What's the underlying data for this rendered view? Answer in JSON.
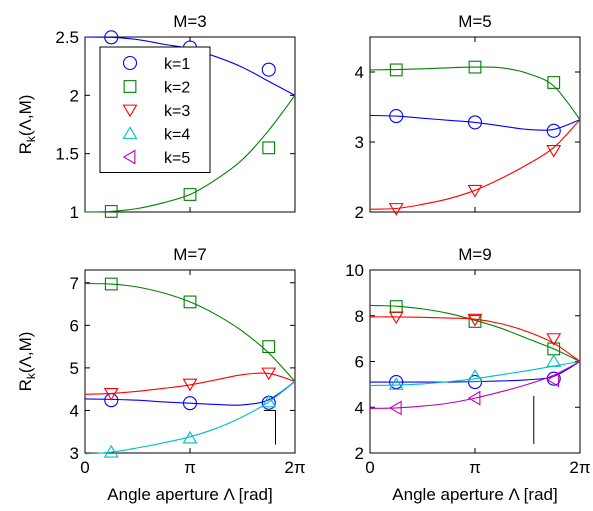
{
  "chart_data": [
    {
      "type": "line",
      "title": "M=3",
      "ylabel": "R",
      "ylabel_sub": "k",
      "ylabel_args": "(Λ,M)",
      "xlabel": "",
      "xlim": [
        0,
        6.2832
      ],
      "ylim": [
        1,
        2.5
      ],
      "xticks": [
        0,
        3.1416,
        6.2832
      ],
      "xticklabels": [
        "",
        "",
        ""
      ],
      "yticks": [
        1,
        1.5,
        2,
        2.5
      ],
      "yticklabels": [
        "1",
        "1.5",
        "2",
        "2.5"
      ],
      "grid": false,
      "legend": {
        "position": "inside-left",
        "entries": [
          "k=1",
          "k=2",
          "k=3",
          "k=4",
          "k=5"
        ]
      },
      "series": [
        {
          "k": 1,
          "curve_x": [
            0,
            0.7854,
            1.5708,
            2.3562,
            3.1416,
            3.927,
            4.7124,
            5.4978,
            6.2832
          ],
          "curve_y": [
            2.5,
            2.497,
            2.478,
            2.438,
            2.4,
            2.33,
            2.24,
            2.12,
            2.0
          ],
          "marker_x": [
            0.7854,
            3.1416,
            5.4978
          ],
          "marker_y": [
            2.497,
            2.41,
            2.22
          ]
        },
        {
          "k": 2,
          "curve_x": [
            0,
            0.7854,
            1.5708,
            2.3562,
            3.1416,
            3.927,
            4.7124,
            5.4978,
            6.2832
          ],
          "curve_y": [
            1.0,
            1.005,
            1.03,
            1.08,
            1.15,
            1.28,
            1.45,
            1.7,
            2.0
          ],
          "marker_x": [
            0.7854,
            3.1416,
            5.4978
          ],
          "marker_y": [
            1.005,
            1.15,
            1.55
          ]
        }
      ]
    },
    {
      "type": "line",
      "title": "M=5",
      "ylabel": "",
      "xlabel": "",
      "xlim": [
        0,
        6.2832
      ],
      "ylim": [
        2,
        4.5
      ],
      "xticks": [
        0,
        3.1416,
        6.2832
      ],
      "xticklabels": [
        "",
        "",
        ""
      ],
      "yticks": [
        2,
        3,
        4
      ],
      "yticklabels": [
        "2",
        "3",
        "4"
      ],
      "grid": false,
      "series": [
        {
          "k": 1,
          "curve_x": [
            0,
            0.7854,
            1.5708,
            2.3562,
            3.1416,
            3.927,
            4.7124,
            5.4978,
            6.2832
          ],
          "curve_y": [
            3.38,
            3.37,
            3.34,
            3.31,
            3.28,
            3.23,
            3.18,
            3.18,
            3.32
          ],
          "marker_x": [
            0.7854,
            3.1416,
            5.4978
          ],
          "marker_y": [
            3.37,
            3.28,
            3.16
          ]
        },
        {
          "k": 2,
          "curve_x": [
            0,
            0.7854,
            1.5708,
            2.3562,
            3.1416,
            3.927,
            4.7124,
            5.4978,
            6.2832
          ],
          "curve_y": [
            4.03,
            4.035,
            4.045,
            4.06,
            4.07,
            4.06,
            3.98,
            3.8,
            3.32
          ],
          "marker_x": [
            0.7854,
            3.1416,
            5.4978
          ],
          "marker_y": [
            4.03,
            4.07,
            3.85
          ]
        },
        {
          "k": 3,
          "curve_x": [
            0,
            0.7854,
            1.5708,
            2.3562,
            3.1416,
            3.927,
            4.7124,
            5.4978,
            6.2832
          ],
          "curve_y": [
            2.04,
            2.05,
            2.11,
            2.19,
            2.31,
            2.48,
            2.68,
            2.92,
            3.32
          ],
          "marker_x": [
            0.7854,
            3.1416,
            5.4978
          ],
          "marker_y": [
            2.05,
            2.31,
            2.88
          ]
        }
      ]
    },
    {
      "type": "line",
      "title": "M=7",
      "ylabel": "R",
      "ylabel_sub": "k",
      "ylabel_args": "(Λ,M)",
      "xlabel": "Angle aperture Λ [rad]",
      "xlim": [
        0,
        6.2832
      ],
      "ylim": [
        3,
        7.3
      ],
      "xticks": [
        0,
        3.1416,
        6.2832
      ],
      "xticklabels": [
        "0",
        "π",
        "2π"
      ],
      "yticks": [
        3,
        4,
        5,
        6,
        7
      ],
      "yticklabels": [
        "3",
        "4",
        "5",
        "6",
        "7"
      ],
      "grid": false,
      "series": [
        {
          "k": 1,
          "curve_x": [
            0,
            0.7854,
            1.5708,
            2.3562,
            3.1416,
            3.927,
            4.7124,
            5.4978,
            6.2832
          ],
          "curve_y": [
            4.27,
            4.26,
            4.24,
            4.2,
            4.17,
            4.14,
            4.13,
            4.25,
            4.68
          ],
          "marker_x": [
            0.7854,
            3.1416,
            5.4978
          ],
          "marker_y": [
            4.24,
            4.17,
            4.18
          ]
        },
        {
          "k": 2,
          "curve_x": [
            0,
            0.7854,
            1.5708,
            2.3562,
            3.1416,
            3.927,
            4.7124,
            5.4978,
            6.2832
          ],
          "curve_y": [
            6.98,
            6.97,
            6.9,
            6.76,
            6.55,
            6.25,
            5.86,
            5.35,
            4.68
          ],
          "marker_x": [
            0.7854,
            3.1416,
            5.4978
          ],
          "marker_y": [
            6.97,
            6.55,
            5.5
          ]
        },
        {
          "k": 3,
          "curve_x": [
            0,
            0.7854,
            1.5708,
            2.3562,
            3.1416,
            3.927,
            4.7124,
            5.4978,
            6.2832
          ],
          "curve_y": [
            4.38,
            4.4,
            4.45,
            4.52,
            4.6,
            4.72,
            4.84,
            4.87,
            4.68
          ],
          "marker_x": [
            0.7854,
            3.1416,
            5.4978
          ],
          "marker_y": [
            4.4,
            4.62,
            4.88
          ]
        },
        {
          "k": 4,
          "curve_x": [
            0,
            0.7854,
            1.5708,
            2.3562,
            3.1416,
            3.927,
            4.7124,
            5.4978,
            6.2832
          ],
          "curve_y": [
            2.98,
            3.02,
            3.12,
            3.24,
            3.38,
            3.58,
            3.85,
            4.2,
            4.68
          ],
          "marker_x": [
            0.7854,
            3.1416,
            5.4978
          ],
          "marker_y": [
            3.02,
            3.35,
            4.2
          ]
        }
      ]
    },
    {
      "type": "line",
      "title": "M=9",
      "ylabel": "",
      "xlabel": "Angle aperture Λ [rad]",
      "xlim": [
        0,
        6.2832
      ],
      "ylim": [
        2,
        10
      ],
      "xticks": [
        0,
        3.1416,
        6.2832
      ],
      "xticklabels": [
        "0",
        "π",
        "2π"
      ],
      "yticks": [
        2,
        4,
        6,
        8,
        10
      ],
      "yticklabels": [
        "2",
        "4",
        "6",
        "8",
        "10"
      ],
      "grid": false,
      "series": [
        {
          "k": 1,
          "curve_x": [
            0,
            0.7854,
            1.5708,
            2.3562,
            3.1416,
            3.927,
            4.7124,
            5.4978,
            6.2832
          ],
          "curve_y": [
            5.1,
            5.1,
            5.1,
            5.1,
            5.12,
            5.15,
            5.2,
            5.35,
            6.0
          ],
          "marker_x": [
            0.7854,
            3.1416,
            5.4978
          ],
          "marker_y": [
            5.1,
            5.1,
            5.25
          ]
        },
        {
          "k": 2,
          "curve_x": [
            0,
            0.7854,
            1.5708,
            2.3562,
            3.1416,
            3.927,
            4.7124,
            5.4978,
            6.2832
          ],
          "curve_y": [
            8.45,
            8.42,
            8.3,
            8.1,
            7.8,
            7.45,
            7.0,
            6.55,
            6.0
          ],
          "marker_x": [
            0.7854,
            3.1416,
            5.4978
          ],
          "marker_y": [
            8.4,
            7.75,
            6.55
          ]
        },
        {
          "k": 3,
          "curve_x": [
            0,
            0.7854,
            1.5708,
            2.3562,
            3.1416,
            3.927,
            4.7124,
            5.4978,
            6.2832
          ],
          "curve_y": [
            7.95,
            7.95,
            7.93,
            7.9,
            7.85,
            7.65,
            7.3,
            6.8,
            6.0
          ],
          "marker_x": [
            0.7854,
            3.1416,
            5.4978
          ],
          "marker_y": [
            7.95,
            7.85,
            7.0
          ]
        },
        {
          "k": 4,
          "curve_x": [
            0,
            0.7854,
            1.5708,
            2.3562,
            3.1416,
            3.927,
            4.7124,
            5.4978,
            6.2832
          ],
          "curve_y": [
            4.95,
            4.97,
            5.02,
            5.12,
            5.25,
            5.42,
            5.6,
            5.8,
            6.0
          ],
          "marker_x": [
            0.7854,
            3.1416,
            5.4978
          ],
          "marker_y": [
            5.0,
            5.35,
            6.0
          ]
        },
        {
          "k": 5,
          "curve_x": [
            0,
            0.7854,
            1.5708,
            2.3562,
            3.1416,
            3.927,
            4.7124,
            5.4978,
            6.2832
          ],
          "curve_y": [
            3.95,
            3.97,
            4.05,
            4.18,
            4.4,
            4.68,
            5.0,
            5.4,
            6.0
          ],
          "marker_x": [
            0.7854,
            3.1416,
            5.4978
          ],
          "marker_y": [
            3.97,
            4.4,
            5.2
          ]
        }
      ]
    }
  ],
  "series_styles": {
    "1": {
      "color": "#0000ff",
      "marker": "circle"
    },
    "2": {
      "color": "#008000",
      "marker": "square"
    },
    "3": {
      "color": "#ff0000",
      "marker": "triangle-down"
    },
    "4": {
      "color": "#00bfbf",
      "marker": "triangle-up"
    },
    "5": {
      "color": "#bf00bf",
      "marker": "triangle-left"
    }
  }
}
